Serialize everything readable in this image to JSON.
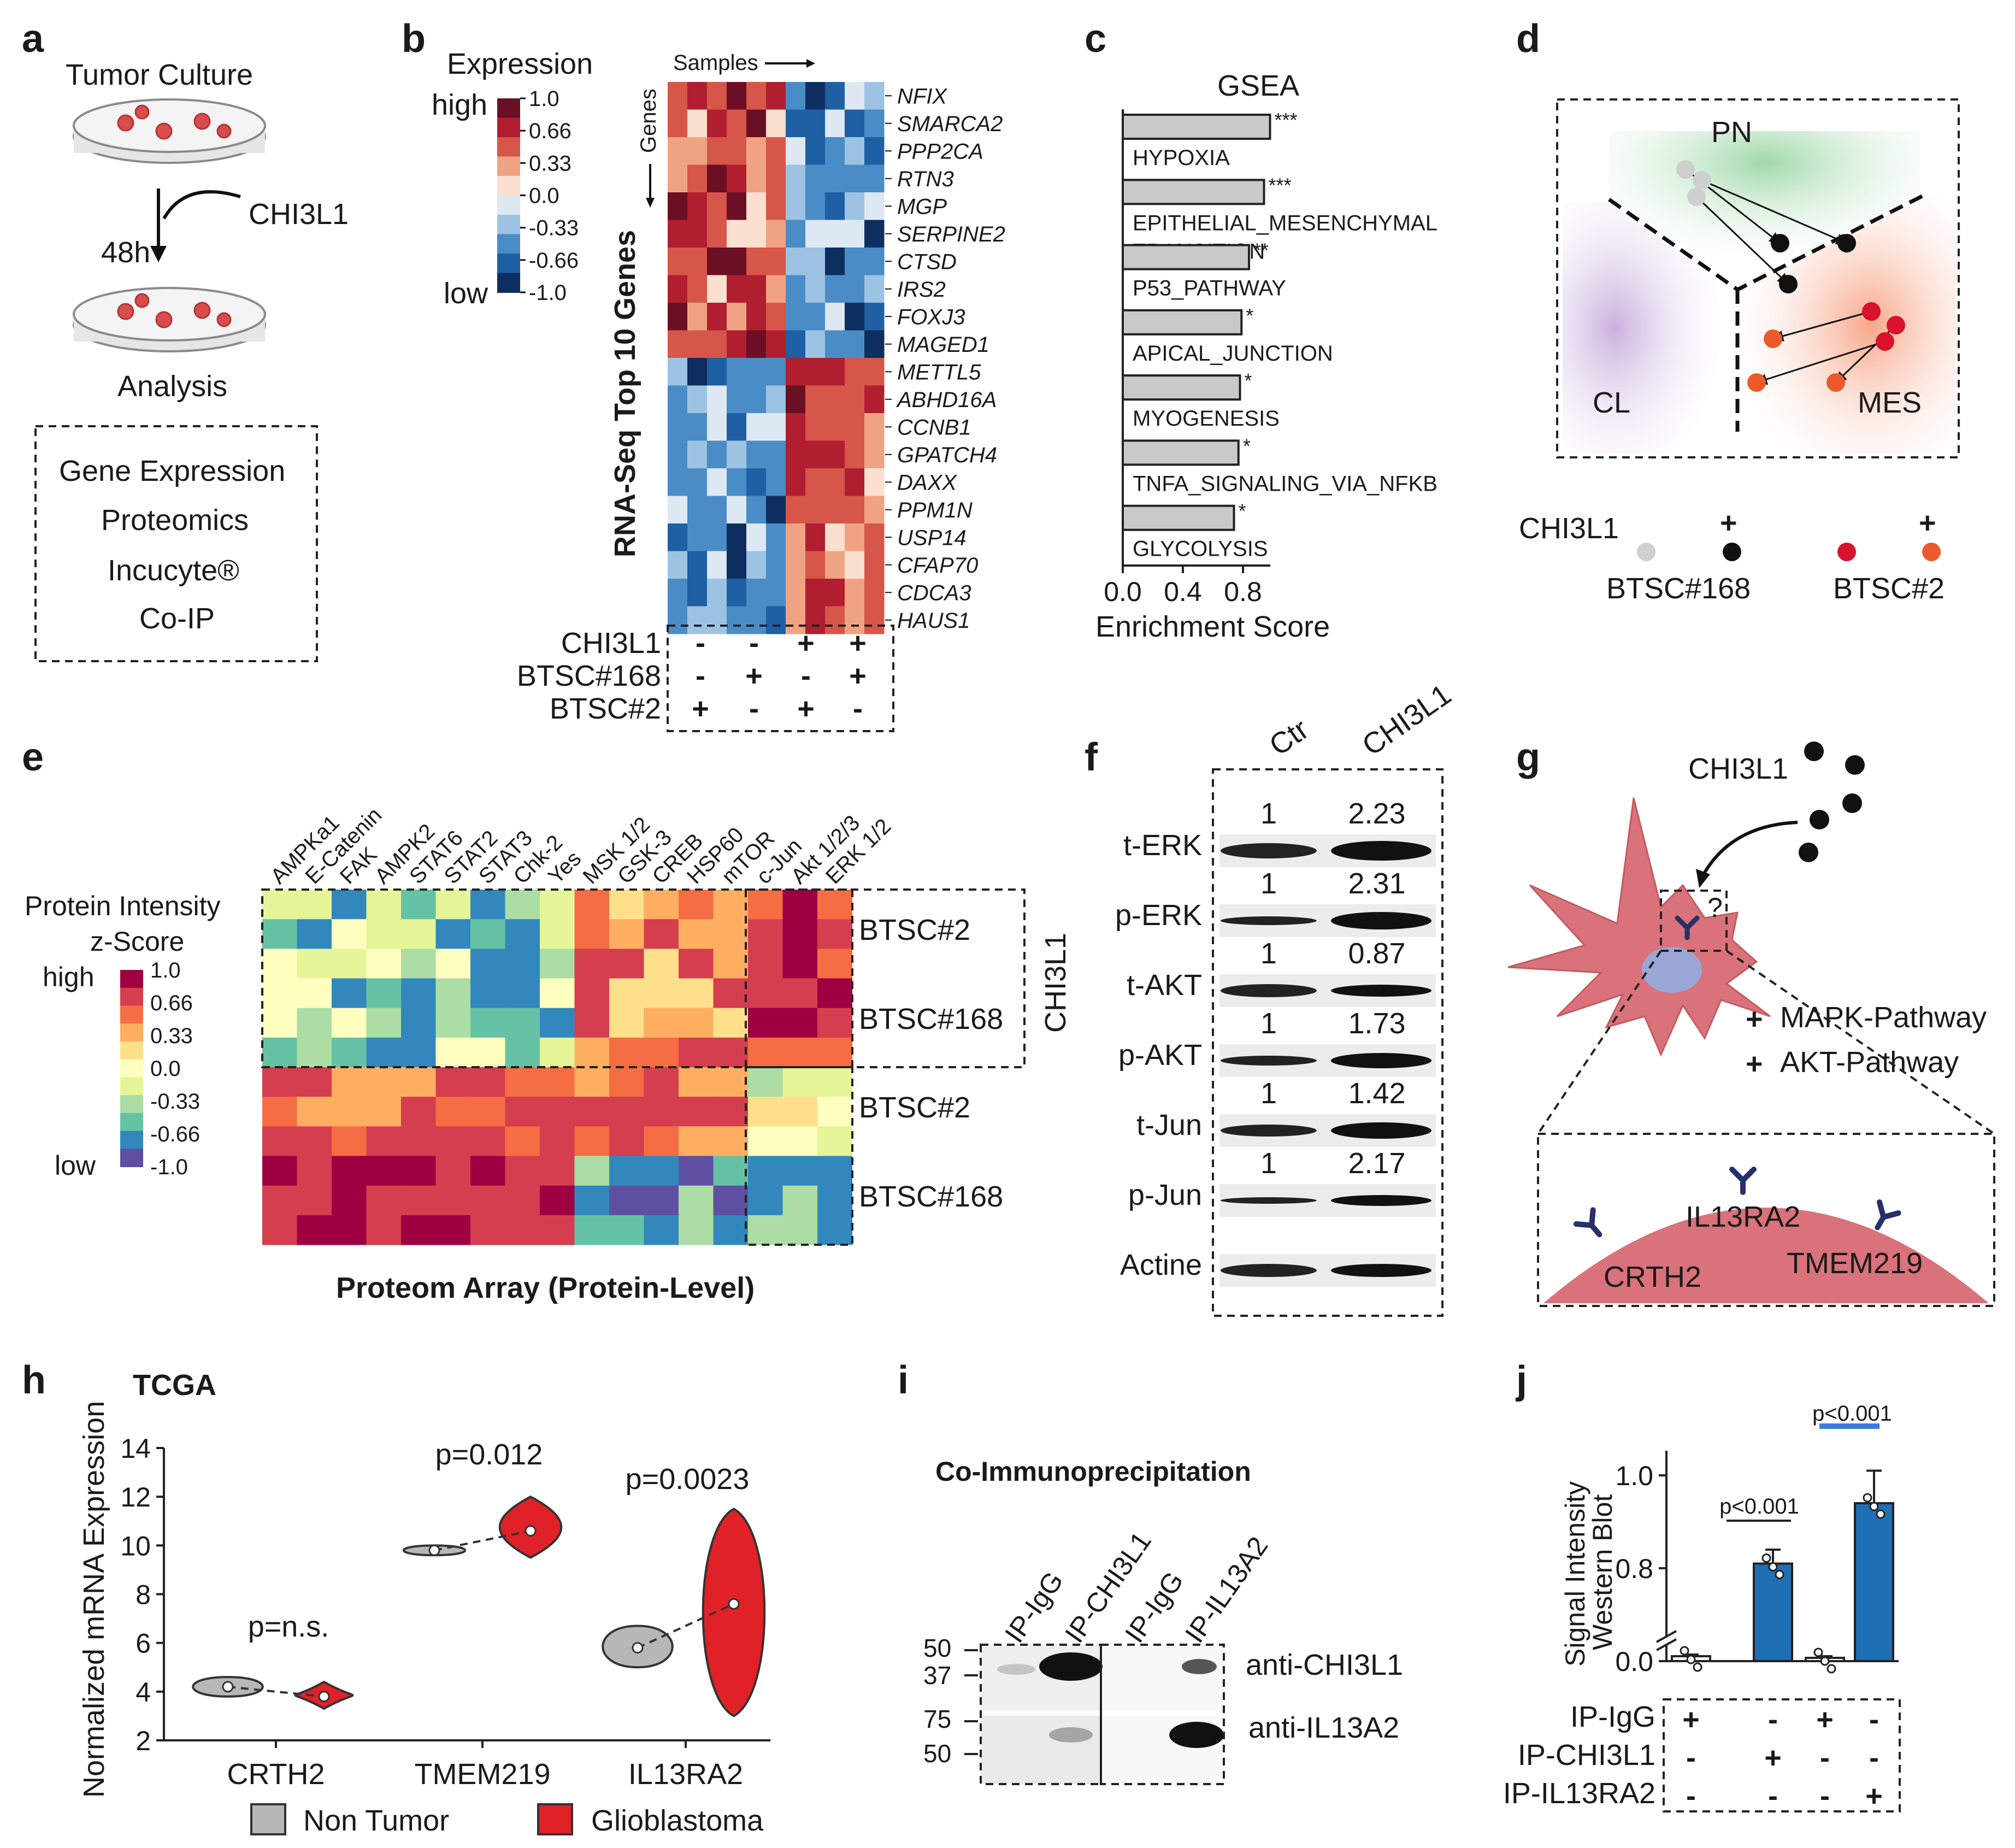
{
  "figure": {
    "panels": {
      "a": {
        "label": "a",
        "title": "Tumor Culture",
        "treatment": "CHI3L1",
        "time": "48h",
        "step2": "Analysis",
        "methods": [
          "Gene Expression",
          "Proteomics",
          "Incucyte®",
          "Co-IP"
        ]
      },
      "b": {
        "label": "b",
        "legend_title": "Expression",
        "legend_high": "high",
        "legend_low": "low",
        "legend_ticks": [
          "1.0",
          "0.66",
          "0.33",
          "0.0",
          "-0.33",
          "-0.66",
          "-1.0"
        ],
        "legend_colors": [
          "#6b0f25",
          "#b01e30",
          "#d6564a",
          "#f0a382",
          "#fbe0d0",
          "#dde8f2",
          "#9cc3e2",
          "#4a8cc6",
          "#1f5fa3",
          "#0f2e60"
        ],
        "ylabel": "RNA-Seq Top 10 Genes",
        "samples_label": "Samples",
        "genes_label": "Genes",
        "genes": [
          "NFIX",
          "SMARCA2",
          "PPP2CA",
          "RTN3",
          "MGP",
          "SERPINE2",
          "CTSD",
          "IRS2",
          "FOXJ3",
          "MAGED1",
          "METTL5",
          "ABHD16A",
          "CCNB1",
          "GPATCH4",
          "DAXX",
          "PPM1N",
          "USP14",
          "CFAP70",
          "CDCA3",
          "HAUS1"
        ],
        "design": [
          {
            "name": "CHI3L1",
            "signs": [
              "-",
              "-",
              "+",
              "+"
            ]
          },
          {
            "name": "BTSC#168",
            "signs": [
              "-",
              "+",
              "-",
              "+"
            ]
          },
          {
            "name": "BTSC#2",
            "signs": [
              "+",
              "-",
              "+",
              "-"
            ]
          }
        ]
      },
      "c": {
        "label": "c",
        "title": "GSEA",
        "xlabel": "Enrichment Score",
        "xticks": [
          "0.0",
          "0.4",
          "0.8"
        ]
      },
      "d": {
        "label": "d",
        "regions": [
          "PN",
          "CL",
          "MES"
        ],
        "legend_row": "CHI3L1",
        "plus": "+",
        "groups": [
          "BTSC#168",
          "BTSC#2"
        ],
        "colors": {
          "gray": "#cfcfcf",
          "black": "#111111",
          "red": "#d8132b",
          "orange": "#ec5a2b"
        }
      },
      "e": {
        "label": "e",
        "legend_title_1": "Protein Intensity",
        "legend_title_2": "z-Score",
        "legend_high": "high",
        "legend_low": "low",
        "legend_ticks": [
          "1.0",
          "0.66",
          "0.33",
          "0.0",
          "-0.33",
          "-0.66",
          "-1.0"
        ],
        "legend_colors": [
          "#9e0142",
          "#d53e4f",
          "#f46d43",
          "#fdae61",
          "#fee08b",
          "#ffffbf",
          "#e6f598",
          "#abdda4",
          "#66c2a5",
          "#3288bd",
          "#5e4fa2"
        ],
        "proteins": [
          "AMPKa1",
          "E-Catenin",
          "FAK",
          "AMPK2",
          "STAT6",
          "STAT2",
          "STAT3",
          "Chk-2",
          "Yes",
          "MSK 1/2",
          "GSK-3",
          "CREB",
          "HSP60",
          "mTOR",
          "c-Jun",
          "Akt 1/2/3",
          "ERK 1/2"
        ],
        "rows": [
          "BTSC#2",
          "BTSC#168",
          "BTSC#2",
          "BTSC#168"
        ],
        "side_label": "CHI3L1",
        "xlabel": "Proteom Array (Protein-Level)"
      },
      "f": {
        "label": "f",
        "columns": [
          "Ctr",
          "CHI3L1"
        ],
        "blots": [
          {
            "name": "t-ERK",
            "values": [
              "1",
              "2.23"
            ]
          },
          {
            "name": "p-ERK",
            "values": [
              "1",
              "2.31"
            ]
          },
          {
            "name": "t-AKT",
            "values": [
              "1",
              "0.87"
            ]
          },
          {
            "name": "p-AKT",
            "values": [
              "1",
              "1.73"
            ]
          },
          {
            "name": "t-Jun",
            "values": [
              "1",
              "1.42"
            ]
          },
          {
            "name": "p-Jun",
            "values": [
              "1",
              "2.17"
            ]
          },
          {
            "name": "Actine",
            "values": [
              "",
              ""
            ]
          }
        ]
      },
      "g": {
        "label": "g",
        "ligand": "CHI3L1",
        "question": "?",
        "pathways": [
          "MAPK-Pathway",
          "AKT-Pathway"
        ],
        "plus": "+",
        "receptors": [
          "IL13RA2",
          "CRTH2",
          "TMEM219"
        ]
      },
      "h": {
        "label": "h",
        "title": "TCGA",
        "legend": [
          "Non Tumor",
          "Glioblastoma"
        ],
        "pvalues": [
          "p=n.s.",
          "p=0.012",
          "p=0.0023"
        ]
      },
      "i": {
        "label": "i",
        "title": "Co-Immunoprecipitation",
        "lanes": [
          "IP-IgG",
          "IP-CHI3L1",
          "IP-IgG",
          "IP-IL13A2"
        ],
        "markers": [
          "50",
          "37",
          "75",
          "50"
        ],
        "antibodies": [
          "anti-CHI3L1",
          "anti-IL13A2"
        ]
      },
      "j": {
        "label": "j",
        "pvalues": [
          "p<0.001",
          "p<0.001"
        ],
        "design": [
          {
            "name": "IP-IgG",
            "signs": [
              "+",
              "-",
              "+",
              "-"
            ]
          },
          {
            "name": "IP-CHI3L1",
            "signs": [
              "-",
              "+",
              "-",
              "-"
            ]
          },
          {
            "name": "IP-IL13RA2",
            "signs": [
              "-",
              "-",
              "-",
              "+"
            ]
          }
        ]
      }
    }
  },
  "chart_data": [
    {
      "panel": "c",
      "type": "bar",
      "orientation": "horizontal",
      "title": "GSEA",
      "xlabel": "Enrichment Score",
      "ylabel": "",
      "xlim": [
        0,
        1.0
      ],
      "categories": [
        "HYPOXIA",
        "EPITHELIAL_MESENCHYMAL TRANSITION",
        "P53_PATHWAY",
        "APICAL_JUNCTION",
        "MYOGENESIS",
        "TNFA_SIGNALING_VIA_NFKB",
        "GLYCOLYSIS"
      ],
      "values": [
        0.98,
        0.94,
        0.84,
        0.79,
        0.78,
        0.77,
        0.74
      ],
      "significance": [
        "***",
        "***",
        "**",
        "*",
        "*",
        "*",
        "*"
      ]
    },
    {
      "panel": "h",
      "type": "violin",
      "title": "TCGA",
      "xlabel": "",
      "ylabel": "Normalized mRNA Expression",
      "ylim": [
        2,
        14
      ],
      "yticks": [
        2,
        4,
        6,
        8,
        10,
        12,
        14
      ],
      "categories": [
        "CRTH2",
        "TMEM219",
        "IL13RA2"
      ],
      "series": [
        {
          "name": "Non Tumor",
          "color": "#b7b7b7",
          "medians": [
            4.2,
            9.8,
            5.8
          ]
        },
        {
          "name": "Glioblastoma",
          "color": "#e02128",
          "medians": [
            3.8,
            10.6,
            7.6
          ]
        }
      ],
      "pvalues": [
        "p=n.s.",
        "p=0.012",
        "p=0.0023"
      ]
    },
    {
      "panel": "j",
      "type": "bar",
      "title": "",
      "xlabel": "",
      "ylabel": "Signal Intensity Western Blot",
      "yticks": [
        "0.0",
        "0.8",
        "1.0"
      ],
      "ylim": [
        0,
        1.1
      ],
      "axis_break": [
        0.1,
        0.7
      ],
      "categories": [
        "IP-IgG",
        "IP-CHI3L1",
        "IP-IgG",
        "IP-IL13RA2"
      ],
      "values": [
        0.03,
        0.81,
        0.02,
        0.94
      ],
      "errors": [
        0.01,
        0.03,
        0.01,
        0.07
      ],
      "colors": [
        "#ffffff",
        "#1f6fb5",
        "#ffffff",
        "#1f6fb5"
      ],
      "pvalues": [
        "p<0.001",
        "p<0.001"
      ]
    }
  ]
}
